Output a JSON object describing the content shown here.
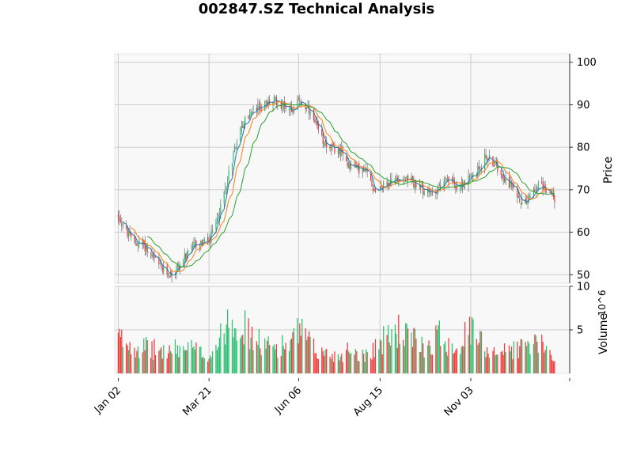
{
  "chart_data": {
    "type": "candlestick",
    "title": "002847.SZ Technical Analysis",
    "panels": {
      "price": {
        "ylabel": "Price",
        "ylim": [
          48,
          102
        ],
        "yticks": [
          50,
          60,
          70,
          80,
          90,
          100
        ],
        "grid": true
      },
      "volume": {
        "ylabel": "Volume",
        "ylabel_exponent": "10^6",
        "ylim": [
          0,
          10
        ],
        "yticks": [
          5,
          10
        ],
        "grid": true
      }
    },
    "xaxis": {
      "tick_labels": [
        "Jan 02",
        "Mar 21",
        "Jun 06",
        "Aug 15",
        "Nov 03"
      ],
      "tick_days": [
        0,
        78,
        155,
        225,
        303
      ],
      "xlim_days": [
        -3,
        388
      ],
      "extra_tick_day": 388
    },
    "colors": {
      "up": "#2fbf71",
      "down": "#f03b3b",
      "ma_short": "#1f77b4",
      "ma_mid": "#ff7f0e",
      "ma_long": "#2ca02c",
      "panel_bg": "#f8f8f8",
      "grid": "#cccccc"
    },
    "price_keypoints": [
      [
        0,
        64
      ],
      [
        5,
        61
      ],
      [
        12,
        58
      ],
      [
        22,
        57
      ],
      [
        30,
        54
      ],
      [
        38,
        51
      ],
      [
        46,
        50
      ],
      [
        55,
        53
      ],
      [
        66,
        57
      ],
      [
        78,
        58
      ],
      [
        84,
        62
      ],
      [
        90,
        68
      ],
      [
        96,
        75
      ],
      [
        102,
        82
      ],
      [
        110,
        87
      ],
      [
        118,
        89
      ],
      [
        126,
        90
      ],
      [
        134,
        91
      ],
      [
        142,
        90
      ],
      [
        150,
        89
      ],
      [
        156,
        91
      ],
      [
        162,
        89
      ],
      [
        168,
        86
      ],
      [
        175,
        82
      ],
      [
        182,
        80
      ],
      [
        190,
        79
      ],
      [
        198,
        76
      ],
      [
        206,
        75
      ],
      [
        214,
        74
      ],
      [
        220,
        70
      ],
      [
        228,
        71
      ],
      [
        236,
        72
      ],
      [
        244,
        73
      ],
      [
        252,
        72
      ],
      [
        260,
        70
      ],
      [
        268,
        69
      ],
      [
        276,
        71
      ],
      [
        284,
        72
      ],
      [
        292,
        71
      ],
      [
        300,
        72
      ],
      [
        308,
        74
      ],
      [
        316,
        78
      ],
      [
        324,
        76
      ],
      [
        332,
        73
      ],
      [
        340,
        70
      ],
      [
        348,
        67
      ],
      [
        356,
        70
      ],
      [
        362,
        71
      ],
      [
        368,
        70
      ],
      [
        375,
        68
      ]
    ],
    "volume_keypoints": [
      [
        0,
        4
      ],
      [
        20,
        3
      ],
      [
        40,
        2.5
      ],
      [
        60,
        3
      ],
      [
        78,
        2
      ],
      [
        88,
        4
      ],
      [
        95,
        7
      ],
      [
        105,
        6
      ],
      [
        115,
        4
      ],
      [
        130,
        3
      ],
      [
        150,
        3.5
      ],
      [
        155,
        5
      ],
      [
        170,
        2.5
      ],
      [
        190,
        2
      ],
      [
        200,
        3
      ],
      [
        210,
        2
      ],
      [
        225,
        3.5
      ],
      [
        240,
        5
      ],
      [
        250,
        4
      ],
      [
        265,
        3
      ],
      [
        275,
        4.5
      ],
      [
        290,
        3
      ],
      [
        303,
        5
      ],
      [
        315,
        3
      ],
      [
        330,
        2.5
      ],
      [
        345,
        3
      ],
      [
        360,
        3.5
      ],
      [
        375,
        2
      ]
    ],
    "moving_averages": [
      {
        "window": 5,
        "color": "#1f77b4"
      },
      {
        "window": 10,
        "color": "#ff7f0e"
      },
      {
        "window": 20,
        "color": "#2ca02c"
      }
    ]
  }
}
